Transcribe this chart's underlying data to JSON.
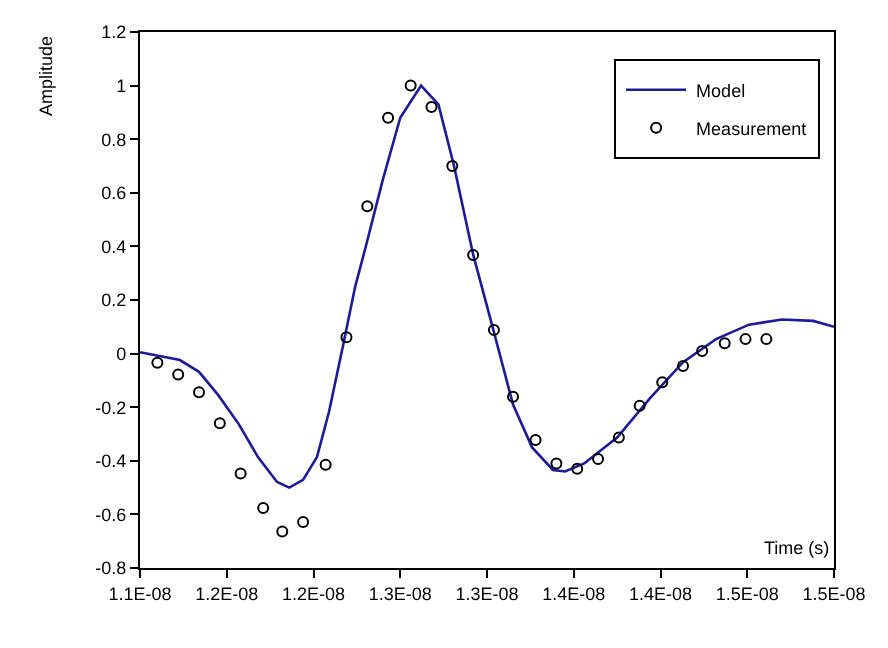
{
  "chart_data": {
    "type": "line",
    "xlabel": "Time (s)",
    "ylabel": "Amplitude",
    "xlim": [
      1.1e-08,
      1.5e-08
    ],
    "xticks": [
      {
        "value": 1.1e-08,
        "label": "1.1E-08"
      },
      {
        "value": 1.15e-08,
        "label": "1.2E-08"
      },
      {
        "value": 1.2e-08,
        "label": "1.2E-08"
      },
      {
        "value": 1.25e-08,
        "label": "1.3E-08"
      },
      {
        "value": 1.3e-08,
        "label": "1.3E-08"
      },
      {
        "value": 1.35e-08,
        "label": "1.4E-08"
      },
      {
        "value": 1.4e-08,
        "label": "1.4E-08"
      },
      {
        "value": 1.45e-08,
        "label": "1.5E-08"
      },
      {
        "value": 1.5e-08,
        "label": "1.5E-08"
      }
    ],
    "ylim": [
      -0.8,
      1.2
    ],
    "yticks": [
      -0.8,
      -0.6,
      -0.4,
      -0.2,
      0,
      0.2,
      0.4,
      0.6,
      0.8,
      1,
      1.2
    ],
    "legend": "top right",
    "series": [
      {
        "name": "Model",
        "color": "#1a1a9a",
        "marker": "none",
        "line_style": "solid",
        "x": [
          1.1e-08,
          1.123e-08,
          1.134e-08,
          1.145e-08,
          1.157e-08,
          1.168e-08,
          1.179e-08,
          1.186e-08,
          1.194e-08,
          1.202e-08,
          1.209e-08,
          1.217e-08,
          1.224e-08,
          1.23e-08,
          1.24e-08,
          1.25e-08,
          1.262e-08,
          1.272e-08,
          1.281e-08,
          1.292e-08,
          1.304e-08,
          1.315e-08,
          1.326e-08,
          1.338e-08,
          1.345e-08,
          1.356e-08,
          1.375e-08,
          1.394e-08,
          1.413e-08,
          1.432e-08,
          1.451e-08,
          1.47e-08,
          1.488e-08,
          1.5e-08
        ],
        "values": [
          0.005,
          -0.024,
          -0.068,
          -0.154,
          -0.264,
          -0.386,
          -0.479,
          -0.5,
          -0.471,
          -0.386,
          -0.215,
          0.029,
          0.249,
          0.396,
          0.65,
          0.88,
          1.0,
          0.93,
          0.7,
          0.37,
          0.08,
          -0.19,
          -0.35,
          -0.434,
          -0.44,
          -0.41,
          -0.313,
          -0.166,
          -0.032,
          0.054,
          0.108,
          0.127,
          0.122,
          0.1
        ]
      },
      {
        "name": "Measurement",
        "type": "scatter",
        "color": "#000000",
        "marker": "circle",
        "x": [
          1.11e-08,
          1.122e-08,
          1.134e-08,
          1.146e-08,
          1.158e-08,
          1.171e-08,
          1.182e-08,
          1.194e-08,
          1.207e-08,
          1.219e-08,
          1.231e-08,
          1.243e-08,
          1.256e-08,
          1.268e-08,
          1.28e-08,
          1.292e-08,
          1.304e-08,
          1.315e-08,
          1.328e-08,
          1.34e-08,
          1.352e-08,
          1.364e-08,
          1.376e-08,
          1.388e-08,
          1.401e-08,
          1.413e-08,
          1.424e-08,
          1.437e-08,
          1.449e-08,
          1.461e-08
        ],
        "values": [
          -0.034,
          -0.078,
          -0.144,
          -0.26,
          -0.447,
          -0.576,
          -0.664,
          -0.628,
          -0.415,
          0.061,
          0.55,
          0.88,
          1.0,
          0.92,
          0.7,
          0.368,
          0.088,
          -0.161,
          -0.322,
          -0.41,
          -0.43,
          -0.393,
          -0.313,
          -0.195,
          -0.107,
          -0.046,
          0.01,
          0.039,
          0.054,
          0.054
        ]
      }
    ]
  }
}
